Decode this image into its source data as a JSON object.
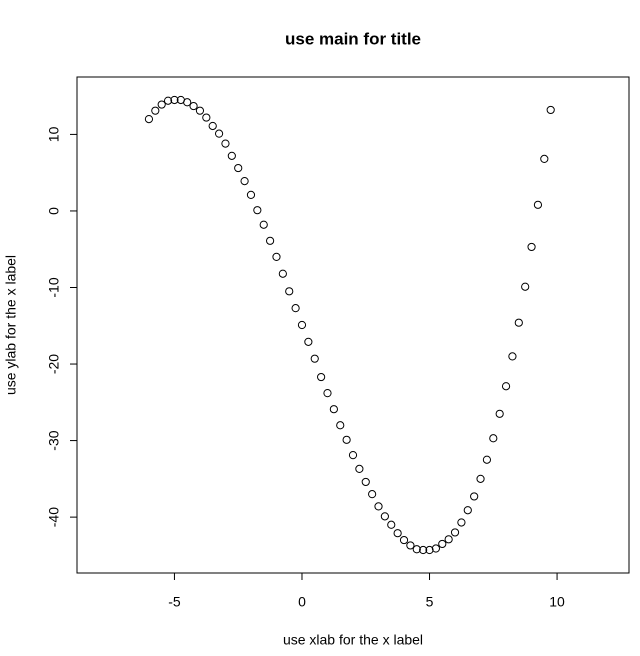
{
  "chart_data": {
    "type": "scatter",
    "title": "use main for title",
    "x_label": "use xlab for the x label",
    "y_label": "use ylab for the x label",
    "x": [
      -6,
      -5.75,
      -5.5,
      -5.25,
      -5,
      -4.75,
      -4.5,
      -4.25,
      -4,
      -3.75,
      -3.5,
      -3.25,
      -3,
      -2.75,
      -2.5,
      -2.25,
      -2,
      -1.75,
      -1.5,
      -1.25,
      -1,
      -0.75,
      -0.5,
      -0.25,
      0,
      0.25,
      0.5,
      0.75,
      1,
      1.25,
      1.5,
      1.75,
      2,
      2.25,
      2.5,
      2.75,
      3,
      3.25,
      3.5,
      3.75,
      4,
      4.25,
      4.5,
      4.75,
      5,
      5.25,
      5.5,
      5.75,
      6,
      6.25,
      6.5,
      6.75,
      7,
      7.25,
      7.5,
      7.75,
      8,
      8.25,
      8.5,
      8.75,
      9,
      9.25,
      9.5,
      9.75
    ],
    "values": [
      12.0,
      13.1,
      13.9,
      14.4,
      14.5,
      14.5,
      14.2,
      13.7,
      13.1,
      12.2,
      11.1,
      10.1,
      8.8,
      7.2,
      5.6,
      3.9,
      2.1,
      0.1,
      -1.8,
      -3.9,
      -6.0,
      -8.2,
      -10.5,
      -12.7,
      -14.9,
      -17.1,
      -19.3,
      -21.7,
      -23.8,
      -25.9,
      -28.0,
      -29.9,
      -31.9,
      -33.7,
      -35.4,
      -37.0,
      -38.6,
      -39.9,
      -41.0,
      -42.1,
      -43.0,
      -43.7,
      -44.2,
      -44.3,
      -44.3,
      -44.1,
      -43.5,
      -42.9,
      -42.0,
      -40.7,
      -39.1,
      -37.3,
      -35.0,
      -32.5,
      -29.7,
      -26.5,
      -22.9,
      -19.0,
      -14.6,
      -9.9,
      -4.7,
      0.8,
      6.8,
      13.2
    ],
    "color": "#000000",
    "xlim": [
      -8.82,
      12.82
    ],
    "xticks": [
      -5,
      0,
      5,
      10
    ],
    "ylim": [
      -47.3,
      17.5
    ],
    "yticks": [
      -40,
      -30,
      -20,
      -10,
      0,
      10
    ]
  }
}
